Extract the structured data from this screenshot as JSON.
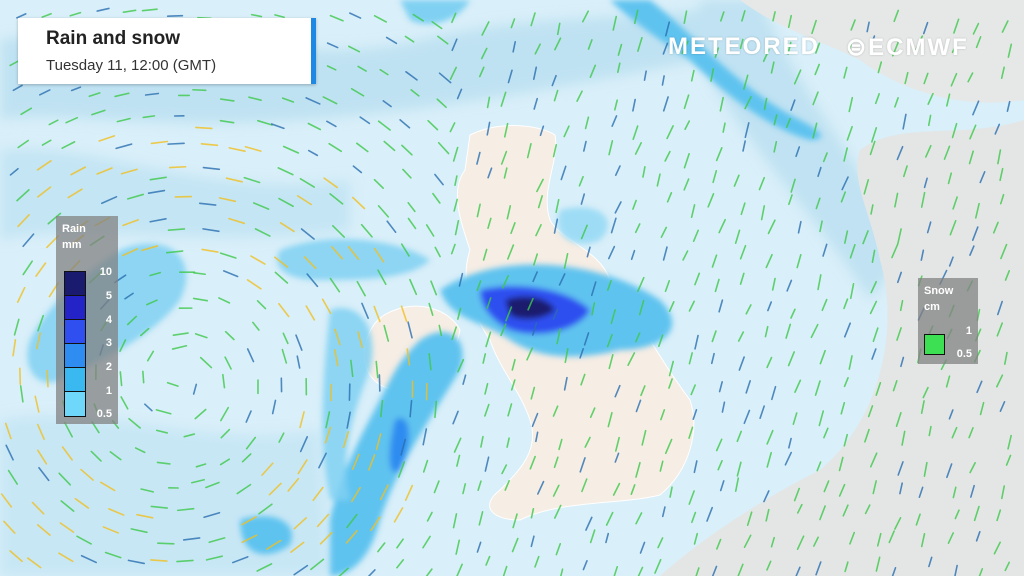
{
  "header": {
    "title": "Rain and snow",
    "subtitle": "Tuesday 11, 12:00 (GMT)",
    "accent": "#1e88e5"
  },
  "branding": {
    "meteored": "METEORED",
    "ecmwf": "ECMWF"
  },
  "rain_legend": {
    "title": "Rain",
    "unit": "mm",
    "levels": [
      {
        "label": "10",
        "color": "#1a1a6e"
      },
      {
        "label": "5",
        "color": "#2323c8"
      },
      {
        "label": "4",
        "color": "#2f4ff0"
      },
      {
        "label": "3",
        "color": "#2f8cf0"
      },
      {
        "label": "2",
        "color": "#3ab8f0"
      },
      {
        "label": "1",
        "color": "#6fd8fa"
      },
      {
        "label": "0.5",
        "color": ""
      }
    ]
  },
  "snow_legend": {
    "title": "Snow",
    "unit": "cm",
    "levels": [
      "1",
      "0.5"
    ],
    "color": "#3de052"
  }
}
